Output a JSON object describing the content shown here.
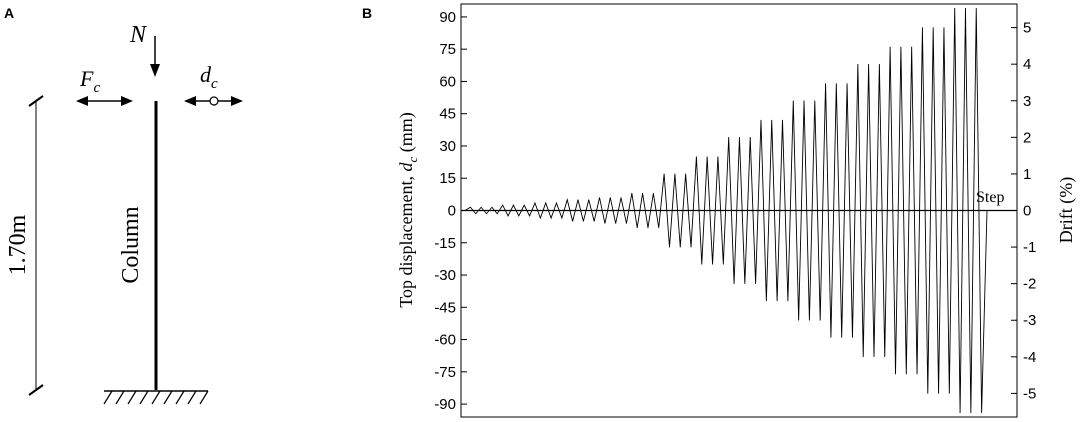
{
  "panel_a": {
    "label": "A",
    "axial_load_symbol": "N",
    "force_symbol": "F",
    "force_subscript": "c",
    "displacement_symbol": "d",
    "displacement_subscript": "c",
    "column_label": "Column",
    "height_label": "1.70m"
  },
  "panel_b": {
    "label": "B",
    "step_label": "Step"
  },
  "chart_data": {
    "type": "line",
    "ylabel_main": "Top displacement, ",
    "ylabel_symbol": "d",
    "ylabel_subscript": "c",
    "ylabel_unit": " (mm)",
    "y2label": "Drift (%)",
    "xlabel": "Step",
    "ylim": [
      -96,
      96
    ],
    "y_ticks": [
      90,
      75,
      60,
      45,
      30,
      15,
      0,
      -15,
      -30,
      -45,
      -60,
      -75,
      -90
    ],
    "y2_ticks": [
      5,
      4,
      3,
      2,
      1,
      0,
      -1,
      -2,
      -3,
      -4,
      -5
    ],
    "drift_per_mm": 0.0588,
    "cycles_per_level": 3,
    "amplitude_levels_mm": [
      1.5,
      2.5,
      3.5,
      5,
      6,
      8,
      17,
      25,
      34,
      42,
      51,
      59,
      68,
      76,
      85,
      94
    ],
    "grid": false,
    "legend": "none"
  },
  "colors": {
    "line": "#000000",
    "background": "#ffffff"
  }
}
